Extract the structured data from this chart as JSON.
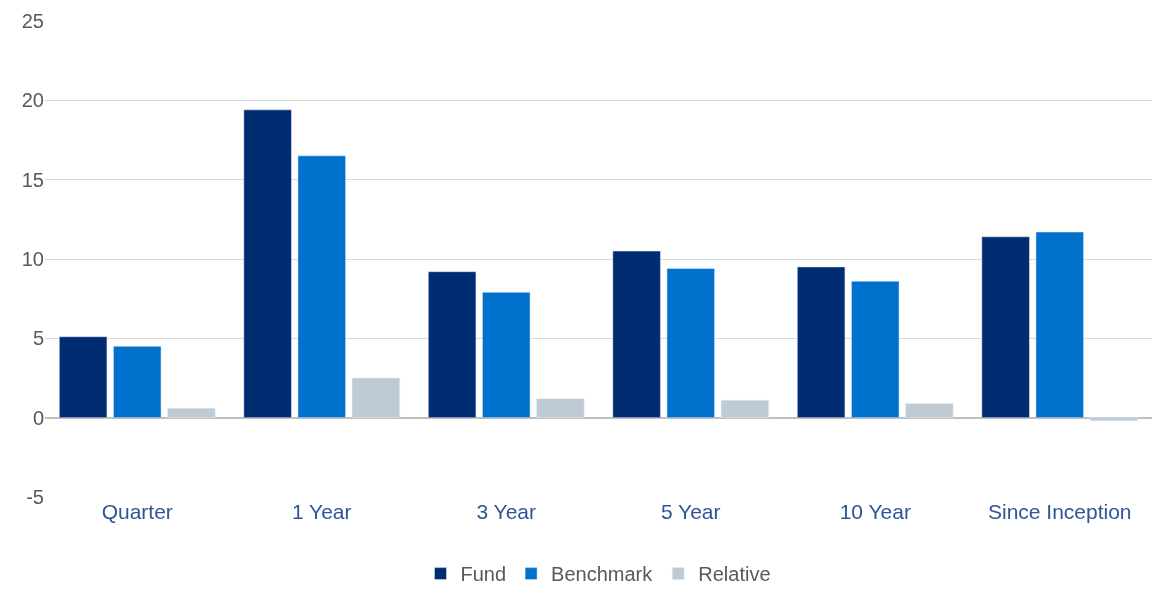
{
  "chart_data": {
    "type": "bar",
    "categories": [
      "Quarter",
      "1 Year",
      "3 Year",
      "5 Year",
      "10 Year",
      "Since Inception"
    ],
    "series": [
      {
        "name": "Fund",
        "color": "#002d72",
        "values": [
          5.1,
          19.4,
          9.2,
          10.5,
          9.5,
          11.4
        ]
      },
      {
        "name": "Benchmark",
        "color": "#0072ce",
        "values": [
          4.5,
          16.5,
          7.9,
          9.4,
          8.6,
          11.7
        ]
      },
      {
        "name": "Relative",
        "color": "#bfcbd4",
        "values": [
          0.6,
          2.5,
          1.2,
          1.1,
          0.9,
          -0.2
        ]
      }
    ],
    "ylim": [
      -5,
      25
    ],
    "yticks": [
      -5,
      0,
      5,
      10,
      15,
      20,
      25
    ],
    "grid": "y",
    "legend": "bottom"
  }
}
